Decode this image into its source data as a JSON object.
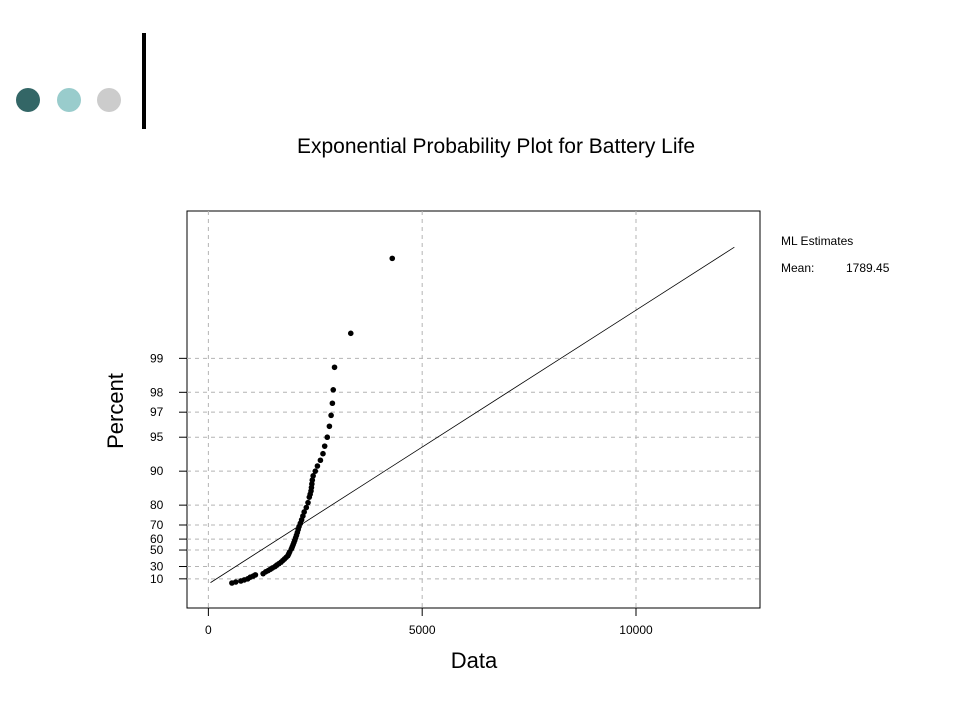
{
  "decoration": {
    "dot_colors": [
      "#336666",
      "#99cccc",
      "#cccccc"
    ]
  },
  "chart_data": {
    "type": "scatter",
    "title": "Exponential Probability Plot for Battery Life",
    "xlabel": "Data",
    "ylabel": "Percent",
    "xlim": [
      -500,
      12900
    ],
    "x_ticks": [
      0,
      5000,
      10000
    ],
    "x_tick_labels": [
      "0",
      "5000",
      "10000"
    ],
    "y_scale": "exponential",
    "y_ticks": [
      10,
      30,
      50,
      60,
      70,
      80,
      90,
      95,
      97,
      98,
      99
    ],
    "y_tick_labels": [
      "10",
      "30",
      "50",
      "60",
      "70",
      "80",
      "90",
      "95",
      "97",
      "98",
      "99"
    ],
    "grid": true,
    "legend": {
      "position": "right",
      "heading": "ML Estimates",
      "label": "Mean:",
      "value": "1789.45"
    },
    "fit_line": {
      "mean": 1789.45,
      "x": [
        50,
        12300
      ]
    },
    "series": [
      {
        "points": [
          [
            550,
            2
          ],
          [
            640,
            4
          ],
          [
            760,
            6
          ],
          [
            840,
            8
          ],
          [
            920,
            10
          ],
          [
            980,
            13
          ],
          [
            1050,
            15
          ],
          [
            1100,
            17
          ],
          [
            1280,
            19
          ],
          [
            1340,
            22
          ],
          [
            1400,
            24
          ],
          [
            1450,
            26
          ],
          [
            1500,
            28
          ],
          [
            1560,
            30
          ],
          [
            1600,
            32
          ],
          [
            1650,
            34
          ],
          [
            1700,
            36
          ],
          [
            1740,
            38
          ],
          [
            1780,
            40
          ],
          [
            1820,
            42
          ],
          [
            1860,
            44
          ],
          [
            1880,
            46
          ],
          [
            1900,
            48
          ],
          [
            1940,
            51
          ],
          [
            1960,
            53
          ],
          [
            1980,
            55
          ],
          [
            2000,
            57
          ],
          [
            2020,
            59
          ],
          [
            2040,
            61
          ],
          [
            2060,
            63
          ],
          [
            2080,
            65
          ],
          [
            2100,
            67
          ],
          [
            2120,
            69
          ],
          [
            2150,
            71
          ],
          [
            2180,
            73
          ],
          [
            2210,
            75
          ],
          [
            2240,
            77
          ],
          [
            2290,
            79
          ],
          [
            2330,
            81
          ],
          [
            2360,
            83
          ],
          [
            2380,
            84
          ],
          [
            2400,
            85
          ],
          [
            2410,
            86
          ],
          [
            2420,
            87
          ],
          [
            2430,
            88
          ],
          [
            2450,
            89
          ],
          [
            2500,
            90
          ],
          [
            2550,
            91
          ],
          [
            2620,
            92
          ],
          [
            2680,
            93
          ],
          [
            2720,
            94
          ],
          [
            2780,
            95
          ],
          [
            2830,
            96
          ],
          [
            2870,
            96.8
          ],
          [
            2900,
            97.5
          ],
          [
            2920,
            98.1
          ],
          [
            2950,
            98.8
          ],
          [
            3330,
            99.4
          ],
          [
            4300,
            99.87
          ]
        ]
      }
    ]
  }
}
